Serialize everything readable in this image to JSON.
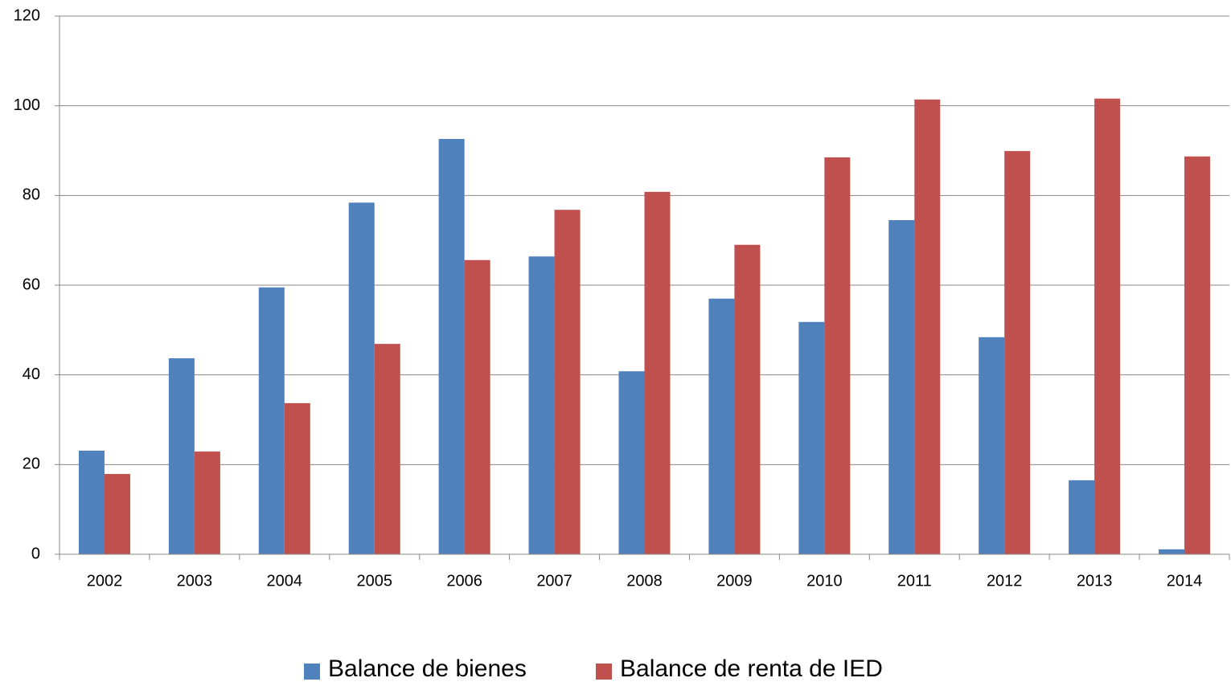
{
  "chart_data": {
    "type": "bar",
    "categories": [
      "2002",
      "2003",
      "2004",
      "2005",
      "2006",
      "2007",
      "2008",
      "2009",
      "2010",
      "2011",
      "2012",
      "2013",
      "2014"
    ],
    "series": [
      {
        "name": "Balance de bienes",
        "color": "#4f81bd",
        "values": [
          23.1,
          43.7,
          59.5,
          78.4,
          92.6,
          66.4,
          40.8,
          57.0,
          51.8,
          74.5,
          48.4,
          16.5,
          1.1
        ]
      },
      {
        "name": "Balance de renta de IED",
        "color": "#c0504d",
        "values": [
          17.9,
          22.9,
          33.7,
          46.9,
          65.6,
          76.8,
          80.8,
          69.0,
          88.5,
          101.4,
          89.9,
          101.6,
          88.7
        ]
      }
    ],
    "ylim": [
      0,
      120
    ],
    "yticks": [
      0,
      20,
      40,
      60,
      80,
      100,
      120
    ],
    "grid": true,
    "legend": "bottom"
  }
}
